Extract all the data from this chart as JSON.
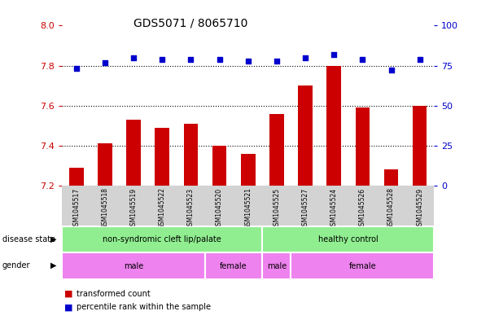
{
  "title": "GDS5071 / 8065710",
  "samples": [
    "GSM1045517",
    "GSM1045518",
    "GSM1045519",
    "GSM1045522",
    "GSM1045523",
    "GSM1045520",
    "GSM1045521",
    "GSM1045525",
    "GSM1045527",
    "GSM1045524",
    "GSM1045526",
    "GSM1045528",
    "GSM1045529"
  ],
  "bar_values": [
    7.29,
    7.41,
    7.53,
    7.49,
    7.51,
    7.4,
    7.36,
    7.56,
    7.7,
    7.8,
    7.59,
    7.28,
    7.6
  ],
  "dot_values": [
    73,
    77,
    80,
    79,
    79,
    79,
    78,
    78,
    80,
    82,
    79,
    72,
    79
  ],
  "ylim_left": [
    7.2,
    8.0
  ],
  "ylim_right": [
    0,
    100
  ],
  "yticks_left": [
    7.2,
    7.4,
    7.6,
    7.8,
    8.0
  ],
  "yticks_right": [
    0,
    25,
    50,
    75,
    100
  ],
  "bar_color": "#cc0000",
  "dot_color": "#0000cc",
  "bar_bottom": 7.2,
  "disease_state_groups": [
    {
      "label": "non-syndromic cleft lip/palate",
      "start": 0,
      "end": 7,
      "color": "#90ee90"
    },
    {
      "label": "healthy control",
      "start": 7,
      "end": 13,
      "color": "#90ee90"
    }
  ],
  "gender_groups": [
    {
      "label": "male",
      "start": 0,
      "end": 5,
      "color": "#ee82ee"
    },
    {
      "label": "female",
      "start": 5,
      "end": 7,
      "color": "#ee82ee"
    },
    {
      "label": "male",
      "start": 7,
      "end": 8,
      "color": "#ee82ee"
    },
    {
      "label": "female",
      "start": 8,
      "end": 13,
      "color": "#ee82ee"
    }
  ],
  "bg_color": "#ffffff",
  "tick_color_left": "#cc0000",
  "tick_color_right": "#0000cc"
}
